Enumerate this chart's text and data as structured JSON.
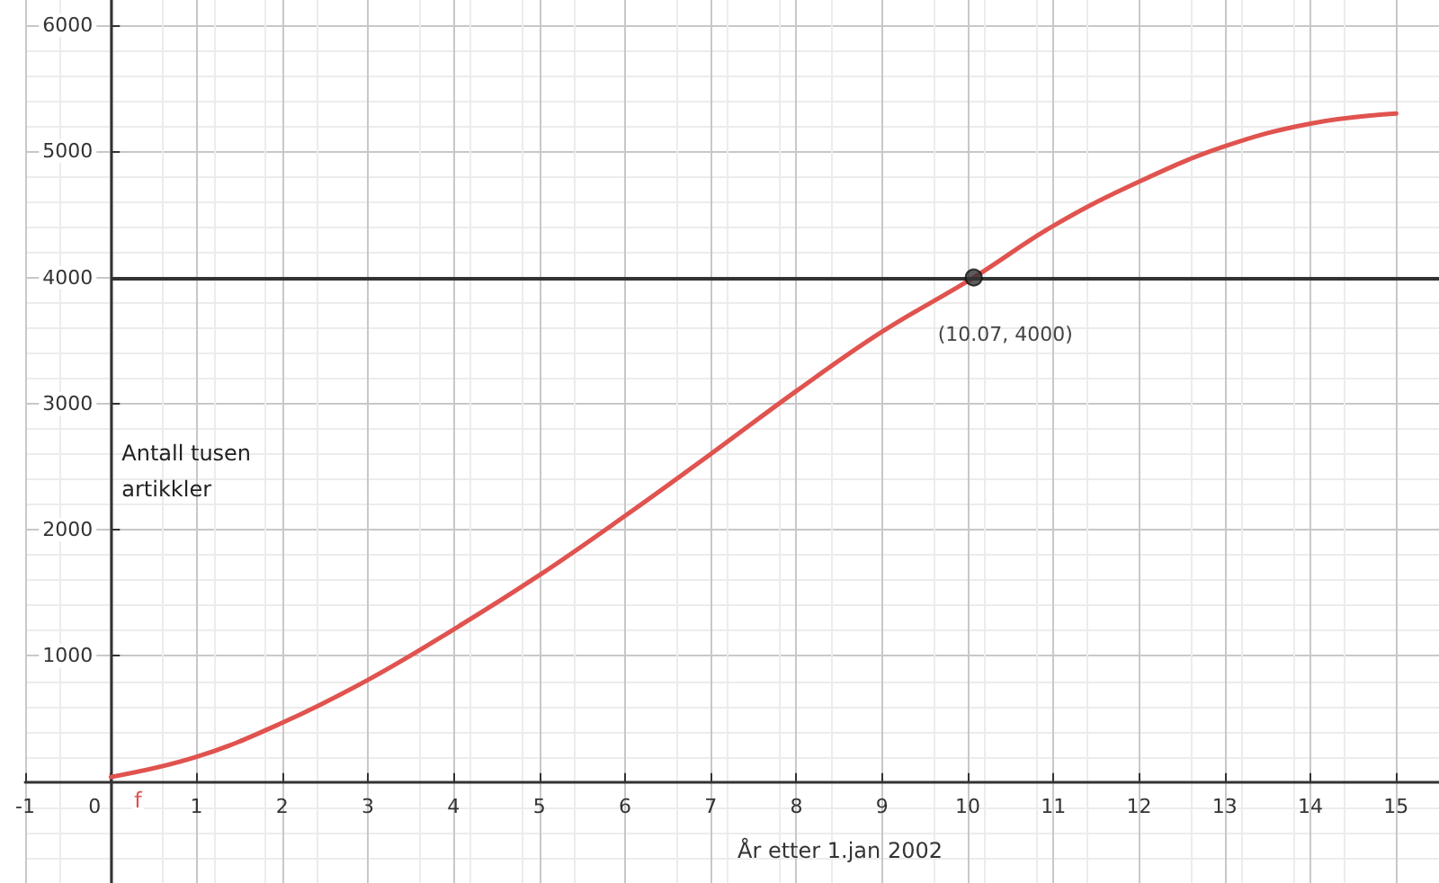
{
  "chart_data": {
    "type": "line",
    "xlabel": "År etter 1.jan 2002",
    "ylabel": "Antall tusen artikkler",
    "x": [
      0,
      1,
      2,
      3,
      4,
      5,
      6,
      7,
      8,
      9,
      10.07,
      11,
      12,
      13,
      14,
      15
    ],
    "series": [
      {
        "name": "f",
        "color": "#e0534f",
        "values": [
          40,
          200,
          470,
          810,
          1210,
          1640,
          2110,
          2600,
          3100,
          3570,
          4000,
          4410,
          4760,
          5040,
          5220,
          5300
        ]
      },
      {
        "type": "scatter",
        "color": "#333333",
        "marker": "circle",
        "x": [
          10.07
        ],
        "values": [
          4000
        ]
      }
    ],
    "ref_lines": [
      {
        "axis": "y",
        "value": 4000,
        "label": null,
        "color": "#333333"
      }
    ],
    "annotations": [
      {
        "text": "(10.07, 4000)",
        "x": 10.07,
        "y": 4000
      }
    ],
    "xlim": [
      -1,
      15.5
    ],
    "ylim": [
      -800,
      6200
    ],
    "xticks": [
      -1,
      0,
      1,
      2,
      3,
      4,
      5,
      6,
      7,
      8,
      9,
      10,
      11,
      12,
      13,
      14,
      15
    ],
    "yticks": [
      1000,
      2000,
      3000,
      4000,
      5000,
      6000
    ],
    "grid": true,
    "marker": "none",
    "line_style": "solid",
    "legend": false
  }
}
